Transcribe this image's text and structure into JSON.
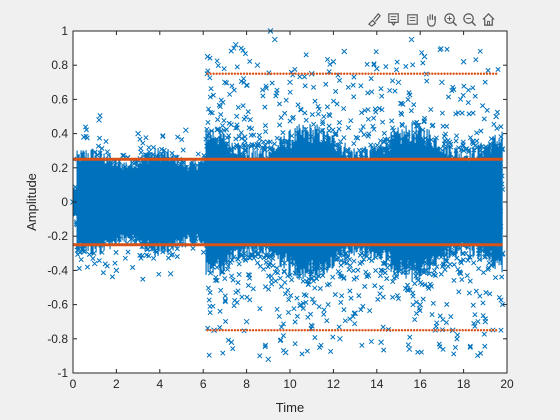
{
  "toolbar": {
    "buttons": [
      {
        "name": "brush-icon"
      },
      {
        "name": "data-tips-icon"
      },
      {
        "name": "rotate-3d-icon"
      },
      {
        "name": "pan-icon"
      },
      {
        "name": "zoom-in-icon"
      },
      {
        "name": "zoom-out-icon"
      },
      {
        "name": "home-icon"
      }
    ]
  },
  "chart_data": {
    "type": "scatter",
    "xlabel": "Time",
    "ylabel": "Amplitude",
    "xlim": [
      0,
      20
    ],
    "ylim": [
      -1,
      1
    ],
    "xticks": [
      0,
      2,
      4,
      6,
      8,
      10,
      12,
      14,
      16,
      18,
      20
    ],
    "yticks": [
      -1,
      -0.8,
      -0.6,
      -0.4,
      -0.2,
      0,
      0.2,
      0.4,
      0.6,
      0.8,
      1
    ],
    "grid": false,
    "legend": false,
    "series": [
      {
        "marker": "x",
        "color": "#0072BD",
        "description_points": [
          [
            0.0,
            0.0
          ],
          [
            0.5,
            0.38
          ],
          [
            1.0,
            -0.36
          ],
          [
            1.2,
            0.48
          ],
          [
            2.0,
            -0.4
          ],
          [
            3.0,
            0.4
          ],
          [
            4.5,
            -0.42
          ],
          [
            5.2,
            0.42
          ],
          [
            6.2,
            0.85
          ],
          [
            6.5,
            -0.75
          ],
          [
            7.0,
            0.7
          ],
          [
            7.3,
            -0.82
          ],
          [
            7.5,
            0.92
          ],
          [
            8.0,
            -0.7
          ],
          [
            8.5,
            0.8
          ],
          [
            9.0,
            -0.92
          ],
          [
            9.1,
            1.0
          ],
          [
            9.3,
            0.95
          ],
          [
            9.8,
            -0.88
          ],
          [
            10.0,
            0.7
          ],
          [
            10.5,
            -0.6
          ],
          [
            11.0,
            0.75
          ],
          [
            12.0,
            0.82
          ],
          [
            12.3,
            -0.8
          ],
          [
            12.5,
            0.88
          ],
          [
            13.0,
            -0.65
          ],
          [
            14.0,
            0.78
          ],
          [
            14.2,
            -0.82
          ],
          [
            15.0,
            0.7
          ],
          [
            15.5,
            -0.86
          ],
          [
            15.6,
            0.95
          ],
          [
            16.0,
            -0.6
          ],
          [
            16.2,
            0.85
          ],
          [
            17.0,
            0.7
          ],
          [
            17.5,
            -0.75
          ],
          [
            18.0,
            0.82
          ],
          [
            19.0,
            -0.7
          ],
          [
            19.5,
            0.5
          ],
          [
            19.8,
            -0.3
          ]
        ]
      },
      {
        "name": "",
        "marker": "line",
        "color": "#D95319",
        "lines": [
          {
            "x": [
              0,
              19.8
            ],
            "y": 0.25,
            "style": "solid"
          },
          {
            "x": [
              0,
              19.8
            ],
            "y": -0.25,
            "style": "solid"
          },
          {
            "x": [
              6.2,
              19.6
            ],
            "y": 0.75,
            "style": "dotted"
          },
          {
            "x": [
              6.2,
              19.6
            ],
            "y": -0.75,
            "style": "dotted"
          }
        ]
      }
    ]
  }
}
